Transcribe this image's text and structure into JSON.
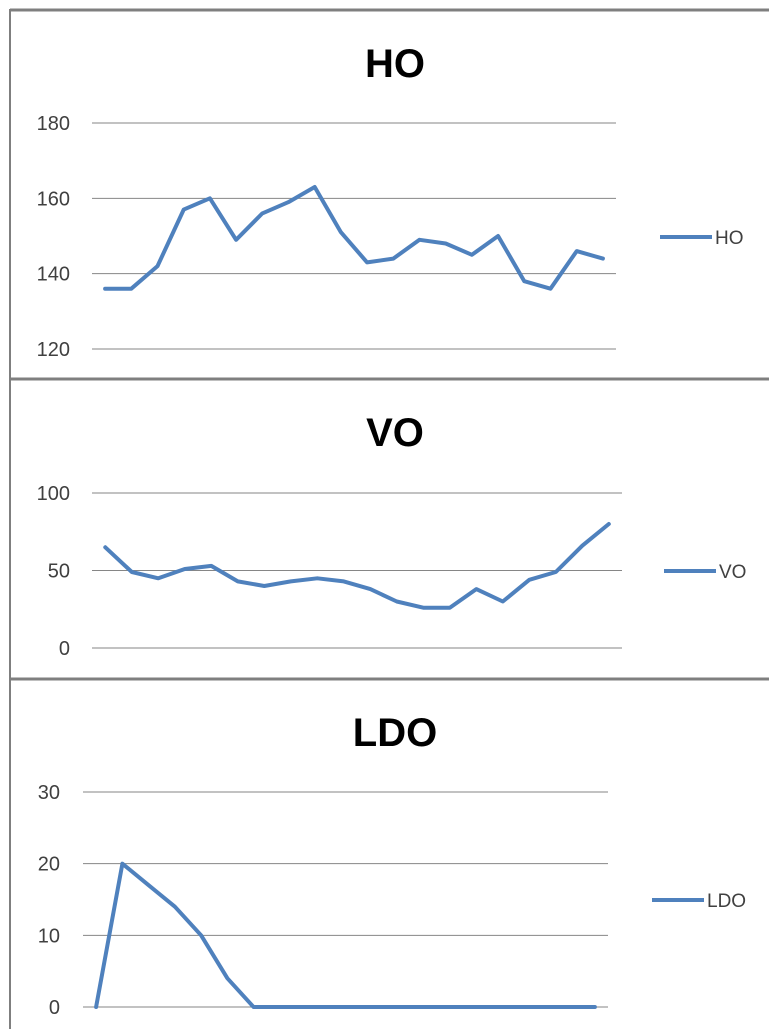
{
  "colors": {
    "series": "#4f81bd",
    "grid": "#868686",
    "border": "#7f7f7f"
  },
  "chart_data": [
    {
      "type": "line",
      "title": "HO",
      "xlabel": "",
      "ylabel": "",
      "ylim": [
        120,
        180
      ],
      "yticks": [
        "120",
        "140",
        "160",
        "180"
      ],
      "legend": "right",
      "grid": true,
      "series": [
        {
          "name": "HO",
          "values": [
            136,
            136,
            142,
            157,
            160,
            149,
            156,
            159,
            163,
            151,
            143,
            144,
            149,
            148,
            145,
            150,
            138,
            136,
            146,
            144
          ]
        }
      ]
    },
    {
      "type": "line",
      "title": "VO",
      "xlabel": "",
      "ylabel": "",
      "ylim": [
        0,
        100
      ],
      "yticks": [
        "0",
        "50",
        "100"
      ],
      "legend": "right",
      "grid": true,
      "series": [
        {
          "name": "VO",
          "values": [
            65,
            49,
            45,
            51,
            53,
            43,
            40,
            43,
            45,
            43,
            38,
            30,
            26,
            26,
            38,
            30,
            44,
            49,
            66,
            80
          ]
        }
      ]
    },
    {
      "type": "line",
      "title": "LDO",
      "xlabel": "",
      "ylabel": "",
      "ylim": [
        0,
        30
      ],
      "yticks": [
        "0",
        "10",
        "20",
        "30"
      ],
      "legend": "right",
      "grid": true,
      "series": [
        {
          "name": "LDO",
          "values": [
            0,
            20,
            17,
            14,
            10,
            4,
            0,
            0,
            0,
            0,
            0,
            0,
            0,
            0,
            0,
            0,
            0,
            0,
            0,
            0
          ]
        }
      ]
    }
  ]
}
